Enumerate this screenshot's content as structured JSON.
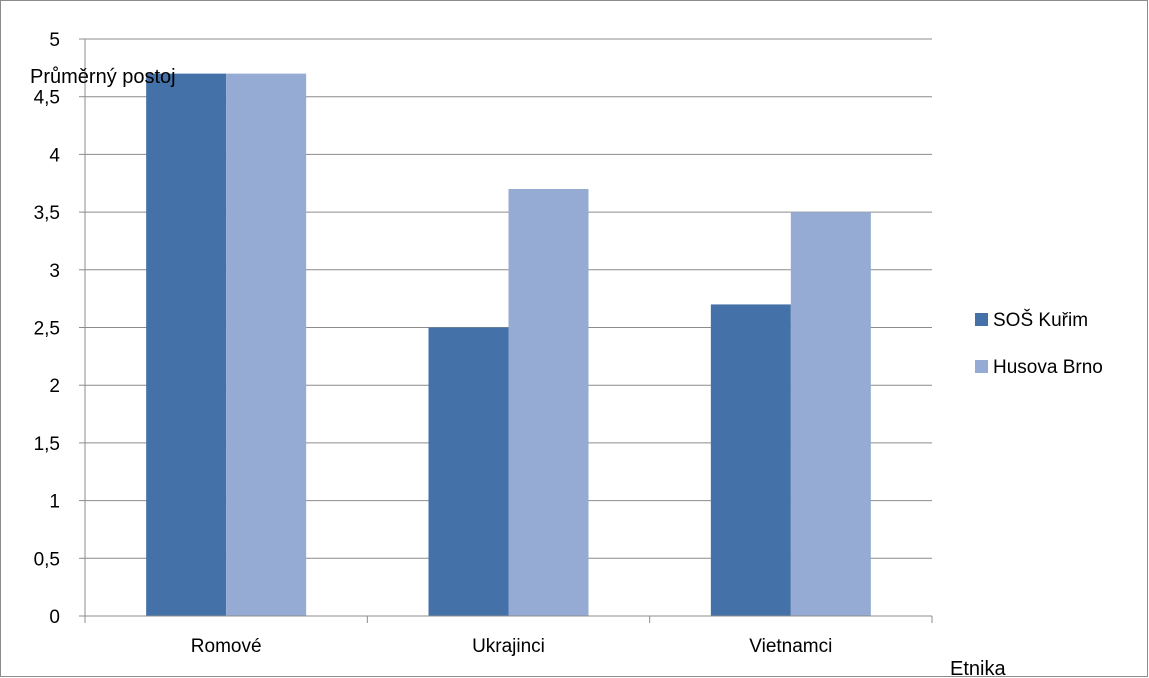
{
  "chart_data": {
    "type": "bar",
    "categories": [
      "Romové",
      "Ukrajinci",
      "Vietnamci"
    ],
    "series": [
      {
        "name": "SOŠ Kuřim",
        "values": [
          4.7,
          2.5,
          2.7
        ],
        "color": "#4472A8"
      },
      {
        "name": "Husova Brno",
        "values": [
          4.7,
          3.7,
          3.5
        ],
        "color": "#95ABD3"
      }
    ],
    "title": "",
    "xlabel": "Etnika",
    "ylabel": "Průměrný postoj",
    "ylim": [
      0,
      5
    ],
    "yticks": [
      "0",
      "0,5",
      "1",
      "1,5",
      "2",
      "2,5",
      "3",
      "3,5",
      "4",
      "4,5",
      "5"
    ],
    "grid": true,
    "legend_position": "right",
    "gridline_color": "#8c8c8c"
  }
}
